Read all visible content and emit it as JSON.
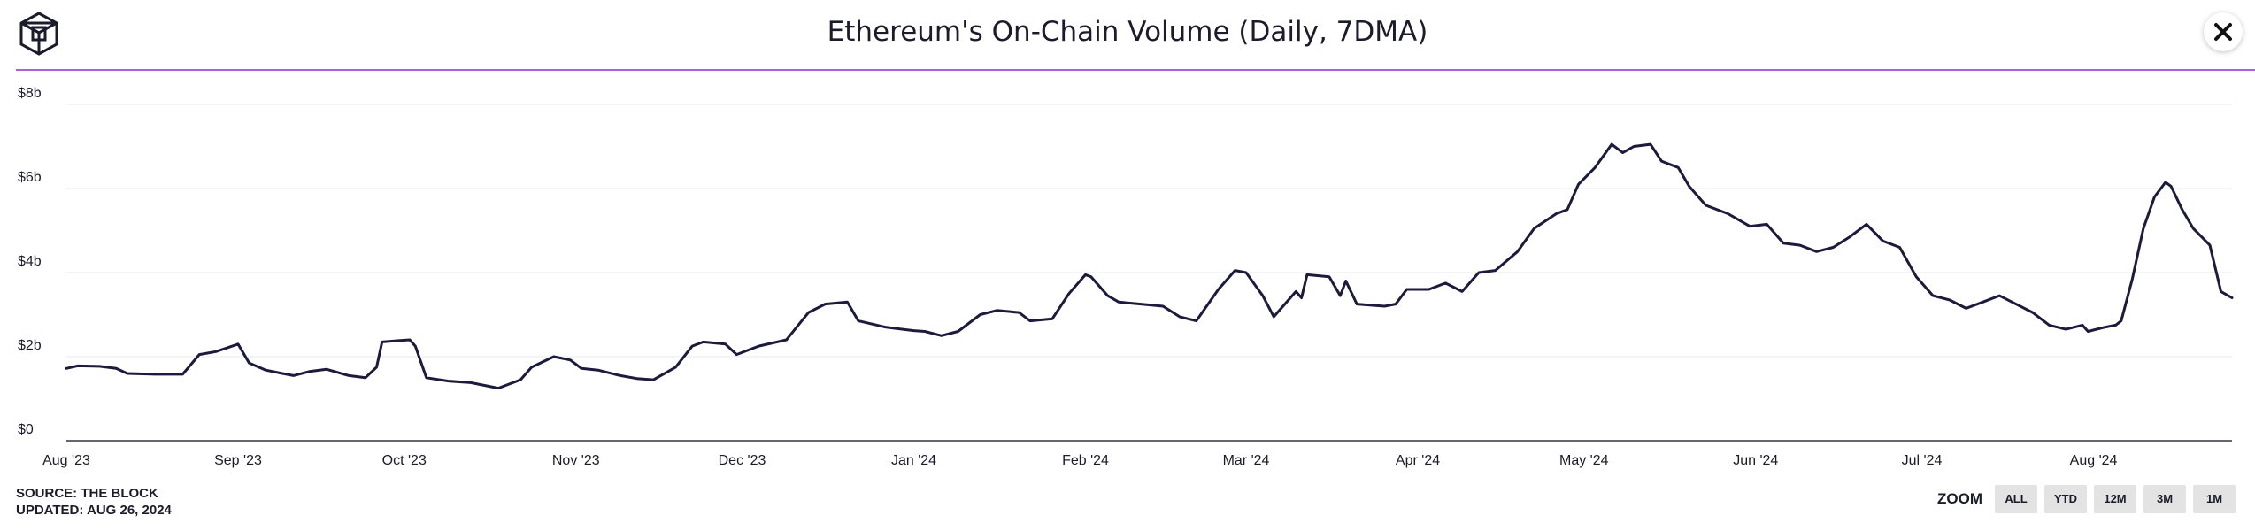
{
  "header": {
    "title": "Ethereum's On-Chain Volume (Daily, 7DMA)",
    "logo_icon": "the-block-cube-logo",
    "close_icon": "close-x-icon"
  },
  "footer": {
    "source": "SOURCE: THE BLOCK",
    "updated": "UPDATED: AUG 26, 2024"
  },
  "zoom": {
    "label": "ZOOM",
    "buttons": [
      "ALL",
      "YTD",
      "12M",
      "3M",
      "1M"
    ]
  },
  "colors": {
    "line": "#1c1a3d",
    "accent_rule": "#b35ad6",
    "grid": "#e9e9ee",
    "text": "#1c1b2b"
  },
  "chart_data": {
    "type": "line",
    "title": "Ethereum's On-Chain Volume (Daily, 7DMA)",
    "y_unit": "USD billions",
    "ylim": [
      0,
      8
    ],
    "y_ticks": [
      {
        "value": 0,
        "label": "$0"
      },
      {
        "value": 2,
        "label": "$2b"
      },
      {
        "value": 4,
        "label": "$4b"
      },
      {
        "value": 6,
        "label": "$6b"
      },
      {
        "value": 8,
        "label": "$8b"
      }
    ],
    "xlim": [
      "2023-08-01",
      "2024-08-26"
    ],
    "x_ticks": [
      {
        "date": "2023-08-01",
        "label": "Aug '23"
      },
      {
        "date": "2023-09-01",
        "label": "Sep '23"
      },
      {
        "date": "2023-10-01",
        "label": "Oct '23"
      },
      {
        "date": "2023-11-01",
        "label": "Nov '23"
      },
      {
        "date": "2023-12-01",
        "label": "Dec '23"
      },
      {
        "date": "2024-01-01",
        "label": "Jan '24"
      },
      {
        "date": "2024-02-01",
        "label": "Feb '24"
      },
      {
        "date": "2024-03-01",
        "label": "Mar '24"
      },
      {
        "date": "2024-04-01",
        "label": "Apr '24"
      },
      {
        "date": "2024-05-01",
        "label": "May '24"
      },
      {
        "date": "2024-06-01",
        "label": "Jun '24"
      },
      {
        "date": "2024-07-01",
        "label": "Jul '24"
      },
      {
        "date": "2024-08-01",
        "label": "Aug '24"
      }
    ],
    "grid": true,
    "legend": "none",
    "series": [
      {
        "points": [
          [
            "2023-08-01",
            1.72
          ],
          [
            "2023-08-03",
            1.78
          ],
          [
            "2023-08-07",
            1.77
          ],
          [
            "2023-08-10",
            1.72
          ],
          [
            "2023-08-12",
            1.6
          ],
          [
            "2023-08-17",
            1.58
          ],
          [
            "2023-08-22",
            1.58
          ],
          [
            "2023-08-25",
            2.05
          ],
          [
            "2023-08-28",
            2.12
          ],
          [
            "2023-09-01",
            2.3
          ],
          [
            "2023-09-03",
            1.85
          ],
          [
            "2023-09-06",
            1.68
          ],
          [
            "2023-09-09",
            1.6
          ],
          [
            "2023-09-11",
            1.55
          ],
          [
            "2023-09-14",
            1.65
          ],
          [
            "2023-09-17",
            1.7
          ],
          [
            "2023-09-21",
            1.55
          ],
          [
            "2023-09-24",
            1.5
          ],
          [
            "2023-09-26",
            1.75
          ],
          [
            "2023-09-27",
            2.35
          ],
          [
            "2023-09-30",
            2.38
          ],
          [
            "2023-10-02",
            2.4
          ],
          [
            "2023-10-03",
            2.25
          ],
          [
            "2023-10-05",
            1.5
          ],
          [
            "2023-10-09",
            1.42
          ],
          [
            "2023-10-13",
            1.38
          ],
          [
            "2023-10-18",
            1.25
          ],
          [
            "2023-10-22",
            1.45
          ],
          [
            "2023-10-24",
            1.75
          ],
          [
            "2023-10-28",
            2.0
          ],
          [
            "2023-10-31",
            1.92
          ],
          [
            "2023-11-02",
            1.72
          ],
          [
            "2023-11-05",
            1.68
          ],
          [
            "2023-11-09",
            1.55
          ],
          [
            "2023-11-12",
            1.48
          ],
          [
            "2023-11-15",
            1.45
          ],
          [
            "2023-11-19",
            1.75
          ],
          [
            "2023-11-22",
            2.25
          ],
          [
            "2023-11-24",
            2.35
          ],
          [
            "2023-11-28",
            2.3
          ],
          [
            "2023-11-30",
            2.05
          ],
          [
            "2023-12-04",
            2.25
          ],
          [
            "2023-12-09",
            2.4
          ],
          [
            "2023-12-13",
            3.05
          ],
          [
            "2023-12-16",
            3.25
          ],
          [
            "2023-12-20",
            3.3
          ],
          [
            "2023-12-22",
            2.85
          ],
          [
            "2023-12-27",
            2.7
          ],
          [
            "2024-01-01",
            2.62
          ],
          [
            "2024-01-03",
            2.6
          ],
          [
            "2024-01-06",
            2.5
          ],
          [
            "2024-01-09",
            2.6
          ],
          [
            "2024-01-13",
            3.0
          ],
          [
            "2024-01-16",
            3.1
          ],
          [
            "2024-01-20",
            3.05
          ],
          [
            "2024-01-22",
            2.85
          ],
          [
            "2024-01-26",
            2.9
          ],
          [
            "2024-01-29",
            3.5
          ],
          [
            "2024-02-01",
            3.95
          ],
          [
            "2024-02-02",
            3.9
          ],
          [
            "2024-02-05",
            3.45
          ],
          [
            "2024-02-07",
            3.3
          ],
          [
            "2024-02-11",
            3.25
          ],
          [
            "2024-02-15",
            3.2
          ],
          [
            "2024-02-18",
            2.95
          ],
          [
            "2024-02-21",
            2.85
          ],
          [
            "2024-02-25",
            3.6
          ],
          [
            "2024-02-28",
            4.05
          ],
          [
            "2024-03-01",
            4.0
          ],
          [
            "2024-03-04",
            3.45
          ],
          [
            "2024-03-06",
            2.95
          ],
          [
            "2024-03-10",
            3.55
          ],
          [
            "2024-03-11",
            3.4
          ],
          [
            "2024-03-12",
            3.95
          ],
          [
            "2024-03-16",
            3.9
          ],
          [
            "2024-03-18",
            3.45
          ],
          [
            "2024-03-19",
            3.8
          ],
          [
            "2024-03-21",
            3.25
          ],
          [
            "2024-03-26",
            3.2
          ],
          [
            "2024-03-28",
            3.25
          ],
          [
            "2024-03-30",
            3.6
          ],
          [
            "2024-04-03",
            3.6
          ],
          [
            "2024-04-06",
            3.75
          ],
          [
            "2024-04-09",
            3.55
          ],
          [
            "2024-04-12",
            4.0
          ],
          [
            "2024-04-15",
            4.05
          ],
          [
            "2024-04-19",
            4.5
          ],
          [
            "2024-04-22",
            5.05
          ],
          [
            "2024-04-26",
            5.4
          ],
          [
            "2024-04-28",
            5.5
          ],
          [
            "2024-04-30",
            6.1
          ],
          [
            "2024-05-03",
            6.5
          ],
          [
            "2024-05-06",
            7.05
          ],
          [
            "2024-05-08",
            6.85
          ],
          [
            "2024-05-10",
            7.0
          ],
          [
            "2024-05-13",
            7.05
          ],
          [
            "2024-05-15",
            6.65
          ],
          [
            "2024-05-18",
            6.5
          ],
          [
            "2024-05-20",
            6.05
          ],
          [
            "2024-05-23",
            5.6
          ],
          [
            "2024-05-27",
            5.4
          ],
          [
            "2024-05-31",
            5.1
          ],
          [
            "2024-06-03",
            5.15
          ],
          [
            "2024-06-06",
            4.7
          ],
          [
            "2024-06-09",
            4.65
          ],
          [
            "2024-06-12",
            4.5
          ],
          [
            "2024-06-15",
            4.6
          ],
          [
            "2024-06-18",
            4.85
          ],
          [
            "2024-06-21",
            5.15
          ],
          [
            "2024-06-24",
            4.75
          ],
          [
            "2024-06-27",
            4.6
          ],
          [
            "2024-06-30",
            3.9
          ],
          [
            "2024-07-03",
            3.45
          ],
          [
            "2024-07-06",
            3.35
          ],
          [
            "2024-07-09",
            3.15
          ],
          [
            "2024-07-12",
            3.3
          ],
          [
            "2024-07-15",
            3.45
          ],
          [
            "2024-07-18",
            3.25
          ],
          [
            "2024-07-21",
            3.05
          ],
          [
            "2024-07-24",
            2.75
          ],
          [
            "2024-07-27",
            2.65
          ],
          [
            "2024-07-30",
            2.75
          ],
          [
            "2024-07-31",
            2.6
          ],
          [
            "2024-08-03",
            2.7
          ],
          [
            "2024-08-05",
            2.75
          ],
          [
            "2024-08-06",
            2.85
          ],
          [
            "2024-08-08",
            3.85
          ],
          [
            "2024-08-10",
            5.05
          ],
          [
            "2024-08-12",
            5.8
          ],
          [
            "2024-08-14",
            6.15
          ],
          [
            "2024-08-15",
            6.05
          ],
          [
            "2024-08-17",
            5.5
          ],
          [
            "2024-08-19",
            5.05
          ],
          [
            "2024-08-22",
            4.65
          ],
          [
            "2024-08-24",
            3.55
          ],
          [
            "2024-08-26",
            3.4
          ]
        ]
      }
    ]
  }
}
